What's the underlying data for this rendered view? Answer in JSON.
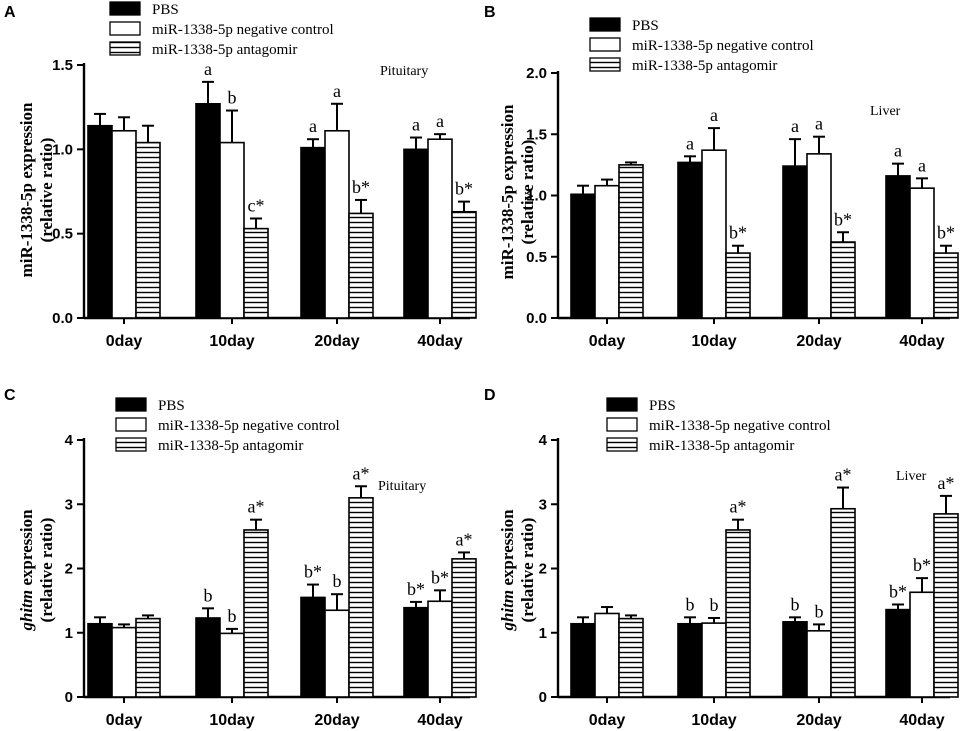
{
  "legend": {
    "entries": [
      "PBS",
      "miR-1338-5p negative control",
      "miR-1338-5p antagomir"
    ]
  },
  "colors": {
    "pbs": "#000000",
    "control": "#ffffff",
    "antagomir": "#ffffff",
    "stroke": "#000000"
  },
  "chart_data": [
    {
      "panel": "A",
      "type": "bar",
      "tissue": "Pituitary",
      "ylabel_line1": "miR-1338-5p expression",
      "ylabel_line1_parts": [
        {
          "t": "miR-1338-5p expression",
          "i": false
        }
      ],
      "ylabel_line2": "(relative ratio)",
      "categories": [
        "0day",
        "10day",
        "20day",
        "40day"
      ],
      "ylim": [
        0,
        1.5
      ],
      "yticks": [
        0,
        0.5,
        1.0,
        1.5
      ],
      "ytick_labels": [
        "0.0",
        "0.5",
        "1.0",
        "1.5"
      ],
      "series": [
        {
          "name": "PBS",
          "values": [
            1.14,
            1.27,
            1.01,
            1.0
          ],
          "errors": [
            0.07,
            0.13,
            0.05,
            0.07
          ],
          "labels": [
            "",
            "a",
            "a",
            "a"
          ]
        },
        {
          "name": "miR-1338-5p negative control",
          "values": [
            1.11,
            1.04,
            1.11,
            1.06
          ],
          "errors": [
            0.08,
            0.19,
            0.16,
            0.03
          ],
          "labels": [
            "",
            "b",
            "a",
            "a"
          ]
        },
        {
          "name": "miR-1338-5p antagomir",
          "values": [
            1.04,
            0.53,
            0.62,
            0.63
          ],
          "errors": [
            0.1,
            0.06,
            0.08,
            0.06
          ],
          "labels": [
            "",
            "c*",
            "b*",
            "b*"
          ]
        }
      ]
    },
    {
      "panel": "B",
      "type": "bar",
      "tissue": "Liver",
      "ylabel_line1": "miR-1338-5p expression",
      "ylabel_line1_parts": [
        {
          "t": "miR-1338-5p expression",
          "i": false
        }
      ],
      "ylabel_line2": "(relative ratio)",
      "categories": [
        "0day",
        "10day",
        "20day",
        "40day"
      ],
      "ylim": [
        0,
        2.0
      ],
      "yticks": [
        0,
        0.5,
        1.0,
        1.5,
        2.0
      ],
      "ytick_labels": [
        "0.0",
        "0.5",
        "1.0",
        "1.5",
        "2.0"
      ],
      "series": [
        {
          "name": "PBS",
          "values": [
            1.01,
            1.27,
            1.24,
            1.16
          ],
          "errors": [
            0.07,
            0.05,
            0.22,
            0.1
          ],
          "labels": [
            "",
            "a",
            "a",
            "a"
          ]
        },
        {
          "name": "miR-1338-5p negative control",
          "values": [
            1.08,
            1.37,
            1.34,
            1.06
          ],
          "errors": [
            0.05,
            0.18,
            0.14,
            0.08
          ],
          "labels": [
            "",
            "a",
            "a",
            "a"
          ]
        },
        {
          "name": "miR-1338-5p antagomir",
          "values": [
            1.25,
            0.53,
            0.62,
            0.53
          ],
          "errors": [
            0.02,
            0.06,
            0.08,
            0.06
          ],
          "labels": [
            "",
            "b*",
            "b*",
            "b*"
          ]
        }
      ]
    },
    {
      "panel": "C",
      "type": "bar",
      "tissue": "Pituitary",
      "ylabel_line1": "ghitm expression",
      "ylabel_line1_parts": [
        {
          "t": "ghitm",
          "i": true
        },
        {
          "t": " expression",
          "i": false
        }
      ],
      "ylabel_line2": "(relative ratio)",
      "categories": [
        "0day",
        "10day",
        "20day",
        "40day"
      ],
      "ylim": [
        0,
        4
      ],
      "yticks": [
        0,
        1,
        2,
        3,
        4
      ],
      "ytick_labels": [
        "0",
        "1",
        "2",
        "3",
        "4"
      ],
      "series": [
        {
          "name": "PBS",
          "values": [
            1.14,
            1.23,
            1.55,
            1.39
          ],
          "errors": [
            0.1,
            0.15,
            0.2,
            0.09
          ],
          "labels": [
            "",
            "b",
            "b*",
            "b*"
          ]
        },
        {
          "name": "miR-1338-5p negative control",
          "values": [
            1.08,
            0.99,
            1.35,
            1.49
          ],
          "errors": [
            0.05,
            0.07,
            0.25,
            0.17
          ],
          "labels": [
            "",
            "b",
            "b",
            "b*"
          ]
        },
        {
          "name": "miR-1338-5p antagomir",
          "values": [
            1.22,
            2.6,
            3.1,
            2.15
          ],
          "errors": [
            0.05,
            0.16,
            0.18,
            0.1
          ],
          "labels": [
            "",
            "a*",
            "a*",
            "a*"
          ]
        }
      ]
    },
    {
      "panel": "D",
      "type": "bar",
      "tissue": "Liver",
      "ylabel_line1": "ghitm expression",
      "ylabel_line1_parts": [
        {
          "t": "ghitm",
          "i": true
        },
        {
          "t": " expression",
          "i": false
        }
      ],
      "ylabel_line2": "(relative ratio)",
      "categories": [
        "0day",
        "10day",
        "20day",
        "40day"
      ],
      "ylim": [
        0,
        4
      ],
      "yticks": [
        0,
        1,
        2,
        3,
        4
      ],
      "ytick_labels": [
        "0",
        "1",
        "2",
        "3",
        "4"
      ],
      "series": [
        {
          "name": "PBS",
          "values": [
            1.14,
            1.14,
            1.17,
            1.36
          ],
          "errors": [
            0.1,
            0.1,
            0.07,
            0.08
          ],
          "labels": [
            "",
            "b",
            "b",
            "b*"
          ]
        },
        {
          "name": "miR-1338-5p negative control",
          "values": [
            1.3,
            1.15,
            1.03,
            1.63
          ],
          "errors": [
            0.1,
            0.08,
            0.1,
            0.22
          ],
          "labels": [
            "",
            "b",
            "b",
            "b*"
          ]
        },
        {
          "name": "miR-1338-5p antagomir",
          "values": [
            1.22,
            2.6,
            2.93,
            2.85
          ],
          "errors": [
            0.05,
            0.16,
            0.33,
            0.28
          ],
          "labels": [
            "",
            "a*",
            "a*",
            "a*"
          ]
        }
      ]
    }
  ]
}
